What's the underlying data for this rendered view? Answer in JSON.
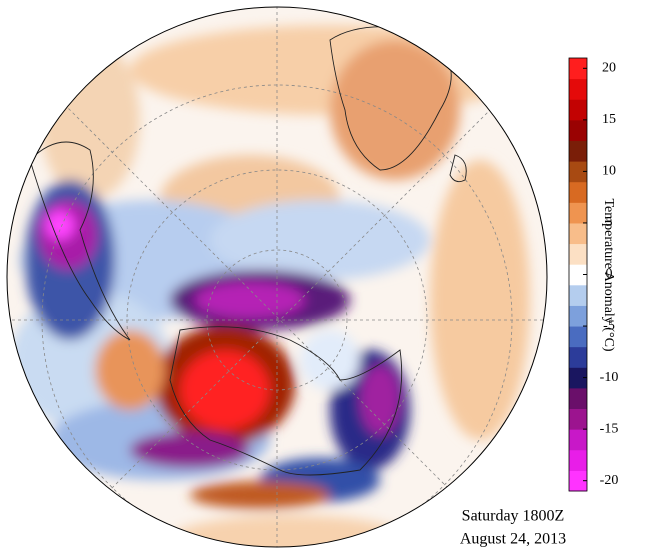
{
  "map": {
    "colorbar": {
      "label": "Temperature Anomaly (°C)",
      "lim": [
        -21,
        21
      ],
      "ticks": [
        20,
        15,
        10,
        5,
        0,
        -5,
        -10,
        -15,
        -20
      ],
      "colors": [
        "#ff33ff",
        "#e81ee8",
        "#c818c8",
        "#9c148f",
        "#6a0f6a",
        "#1a1660",
        "#2c3c9a",
        "#4a6cc0",
        "#7da0dc",
        "#b4cdee",
        "#ffffff",
        "#fce0c4",
        "#f8bd8a",
        "#ef9450",
        "#d86a22",
        "#a84a12",
        "#7a1e08",
        "#9a0202",
        "#c20202",
        "#e40a0a",
        "#ff1e1e"
      ]
    },
    "caption": [
      "Saturday 1800Z",
      "August 24, 2013"
    ]
  }
}
